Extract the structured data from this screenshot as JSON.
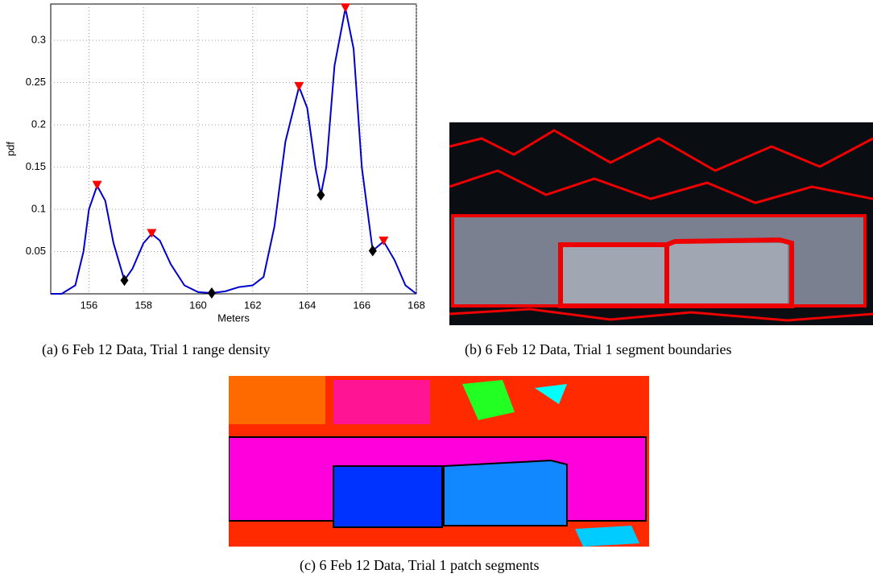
{
  "chart_data": {
    "type": "line",
    "xlabel": "Meters",
    "ylabel": "pdf",
    "xlim": [
      154.6,
      168
    ],
    "ylim": [
      0,
      0.343
    ],
    "xticks": [
      156,
      158,
      160,
      162,
      164,
      166,
      168
    ],
    "yticks": [
      0.05,
      0.1,
      0.15,
      0.2,
      0.25,
      0.3
    ],
    "grid": true,
    "series": [
      {
        "color": "#0000cc",
        "marker": "none",
        "x": [
          154.6,
          155,
          155.5,
          155.8,
          156,
          156.3,
          156.6,
          156.9,
          157.3,
          157.6,
          158,
          158.3,
          158.6,
          159,
          159.5,
          160,
          160.5,
          161,
          161.5,
          162,
          162.4,
          162.8,
          163.2,
          163.7,
          164,
          164.3,
          164.5,
          164.7,
          165,
          165.4,
          165.7,
          166,
          166.4,
          166.8,
          167.2,
          167.6,
          168
        ],
        "values": [
          0,
          0,
          0.01,
          0.05,
          0.1,
          0.128,
          0.11,
          0.06,
          0.016,
          0.03,
          0.06,
          0.071,
          0.063,
          0.035,
          0.01,
          0.002,
          0.001,
          0.003,
          0.008,
          0.01,
          0.02,
          0.08,
          0.18,
          0.245,
          0.22,
          0.15,
          0.117,
          0.15,
          0.27,
          0.338,
          0.29,
          0.15,
          0.051,
          0.062,
          0.04,
          0.01,
          0
        ]
      },
      {
        "color": "#ff0000",
        "marker": "triangle",
        "x": [
          156.3,
          158.3,
          163.7,
          165.4,
          166.8
        ],
        "values": [
          0.128,
          0.071,
          0.245,
          0.338,
          0.062
        ]
      },
      {
        "color": "#000000",
        "marker": "diamond",
        "x": [
          157.3,
          160.5,
          164.5,
          166.4
        ],
        "values": [
          0.016,
          0.001,
          0.117,
          0.051
        ]
      }
    ]
  },
  "captions": [
    "(a) 6 Feb 12 Data, Trial 1 range density",
    "(b) 6 Feb 12 Data, Trial 1 segment boundaries",
    "(c) 6 Feb 12 Data, Trial 1 patch segments"
  ]
}
